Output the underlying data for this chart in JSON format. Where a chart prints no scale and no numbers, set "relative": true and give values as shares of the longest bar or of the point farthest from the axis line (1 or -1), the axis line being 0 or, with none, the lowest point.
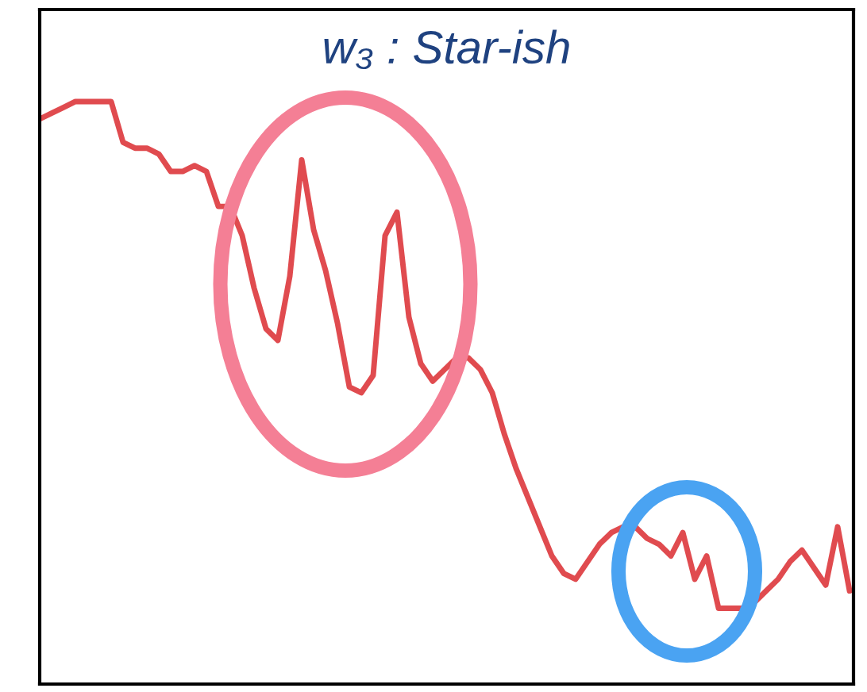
{
  "chart_data": {
    "type": "line",
    "title": "w₃ : Star-ish",
    "relative": true,
    "categories": [
      null,
      null,
      null,
      null,
      null,
      null,
      null,
      null,
      null,
      null,
      null,
      null,
      null,
      null,
      null,
      null,
      null,
      null,
      null,
      null,
      null,
      null,
      null,
      null,
      null,
      null,
      null,
      null,
      null,
      null,
      null,
      null,
      null,
      null,
      null,
      null,
      null,
      null,
      null,
      null,
      null,
      null,
      null,
      null,
      null,
      null,
      null,
      null,
      null,
      null,
      null,
      null,
      null,
      null,
      null,
      null,
      null,
      null,
      null,
      null,
      null,
      null,
      null,
      null,
      null,
      null,
      null,
      null,
      null
    ],
    "series": [
      {
        "color": "#e04b4f",
        "values": [
          0.97,
          0.98,
          0.99,
          1.0,
          1.0,
          1.0,
          1.0,
          0.93,
          0.92,
          0.92,
          0.91,
          0.88,
          0.88,
          0.89,
          0.88,
          0.82,
          0.82,
          0.77,
          0.68,
          0.61,
          0.59,
          0.7,
          0.9,
          0.78,
          0.71,
          0.62,
          0.51,
          0.5,
          0.53,
          0.77,
          0.81,
          0.63,
          0.55,
          0.52,
          0.54,
          0.56,
          0.56,
          0.54,
          0.5,
          0.43,
          0.37,
          0.32,
          0.27,
          0.22,
          0.19,
          0.18,
          0.21,
          0.24,
          0.26,
          0.27,
          0.27,
          0.25,
          0.24,
          0.22,
          0.26,
          0.18,
          0.22,
          0.13,
          0.13,
          0.13,
          0.14,
          0.16,
          0.18,
          0.21,
          0.23,
          0.2,
          0.17,
          0.27,
          0.16
        ]
      }
    ]
  }
}
